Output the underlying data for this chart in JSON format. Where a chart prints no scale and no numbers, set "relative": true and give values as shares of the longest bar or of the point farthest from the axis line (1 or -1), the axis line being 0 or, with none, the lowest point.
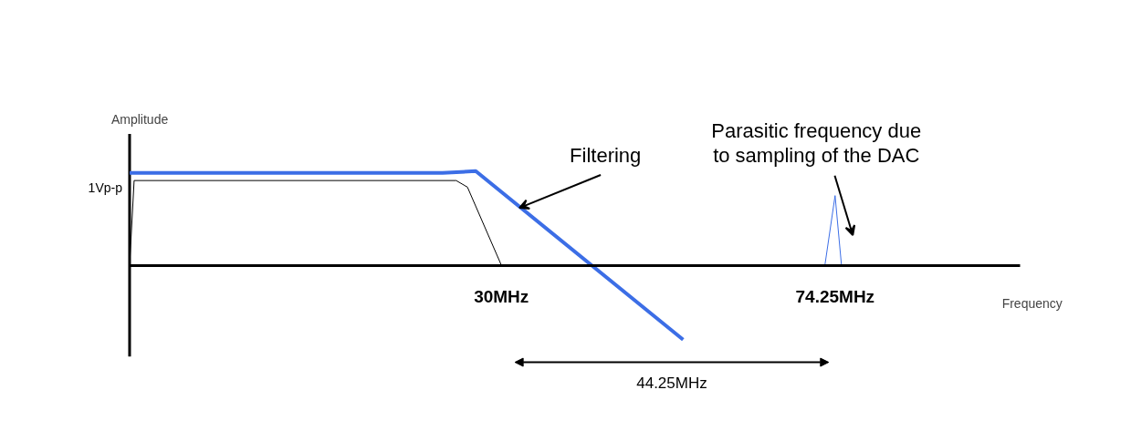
{
  "chart_data": {
    "type": "line",
    "relative": true,
    "xlabel": "Frequency",
    "ylabel": "Amplitude",
    "xlim": [
      -19.3,
      98.8
    ],
    "xticks": [
      {
        "value": 30,
        "label": "30MHz"
      },
      {
        "value": 74.25,
        "label": "74.25MHz"
      }
    ],
    "series": [
      {
        "color": "#3c6ee6",
        "x": [
          -19.3,
          22.2,
          26.6,
          54.1
        ],
        "values": [
          0.98,
          0.98,
          1.0,
          -0.79
        ]
      },
      {
        "color": "#000000",
        "x": [
          -19.3,
          -18.7,
          24.0,
          25.5,
          30
        ],
        "values": [
          0,
          0.9,
          0.9,
          0.83,
          0
        ]
      },
      {
        "color": "#3c6ee6",
        "x": [
          72.9,
          74.25,
          75.1
        ],
        "values": [
          0,
          0.74,
          0
        ]
      }
    ],
    "annotations": [
      {
        "text": "Filtering",
        "x": 32.4,
        "y": 0.61
      },
      "Parasitic frequency due\nto sampling of the DAC",
      "44.25MHz",
      "1Vp-p"
    ],
    "grid": false,
    "marker": "none",
    "line_style": "solid"
  }
}
